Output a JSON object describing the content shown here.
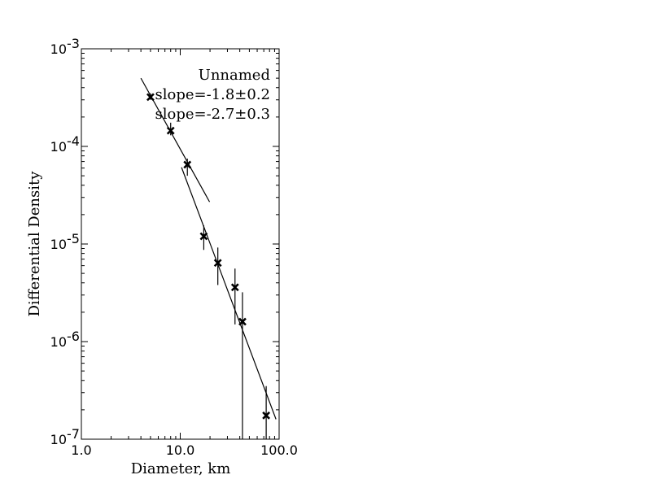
{
  "chart_data": {
    "type": "scatter",
    "xscale": "log",
    "yscale": "log",
    "xlim": [
      1.0,
      100.0
    ],
    "ylim": [
      1e-07,
      0.001
    ],
    "xlabel": "Diameter, km",
    "ylabel": "Differential Density",
    "x_tick_labels": [
      {
        "value": 1,
        "label": "1.0"
      },
      {
        "value": 10,
        "label": "10.0"
      },
      {
        "value": 100,
        "label": "100.0"
      }
    ],
    "y_tick_labels": [
      {
        "value": 1e-07,
        "base": "10",
        "exp": "-7"
      },
      {
        "value": 1e-06,
        "base": "10",
        "exp": "-6"
      },
      {
        "value": 1e-05,
        "base": "10",
        "exp": "-5"
      },
      {
        "value": 0.0001,
        "base": "10",
        "exp": "-4"
      },
      {
        "value": 0.001,
        "base": "10",
        "exp": "-3"
      }
    ],
    "annotations": [
      "Unnamed",
      "slope=-1.8±0.2",
      "slope=-2.7±0.3"
    ],
    "points": [
      {
        "x": 5.0,
        "y": 0.00032,
        "ylo": 0.0003,
        "yhi": 0.00035
      },
      {
        "x": 8.0,
        "y": 0.000145,
        "ylo": 0.00013,
        "yhi": 0.000175
      },
      {
        "x": 11.8,
        "y": 6.5e-05,
        "ylo": 5e-05,
        "yhi": 7.5e-05
      },
      {
        "x": 17.3,
        "y": 1.2e-05,
        "ylo": 8.7e-06,
        "yhi": 1.55e-05
      },
      {
        "x": 24.0,
        "y": 6.4e-06,
        "ylo": 3.8e-06,
        "yhi": 9.2e-06
      },
      {
        "x": 35.8,
        "y": 3.6e-06,
        "ylo": 1.5e-06,
        "yhi": 5.6e-06
      },
      {
        "x": 42.6,
        "y": 1.6e-06,
        "ylo": 1e-07,
        "yhi": 3.2e-06
      },
      {
        "x": 74.0,
        "y": 1.75e-07,
        "ylo": 1e-07,
        "yhi": 3.5e-07
      }
    ],
    "fit_lines": [
      {
        "x": [
          4.0,
          19.8
        ],
        "y": [
          0.0005,
          2.7e-05
        ]
      },
      {
        "x": [
          10.3,
          93.0
        ],
        "y": [
          6.1e-05,
          1.6e-07
        ]
      }
    ],
    "grid": false
  }
}
